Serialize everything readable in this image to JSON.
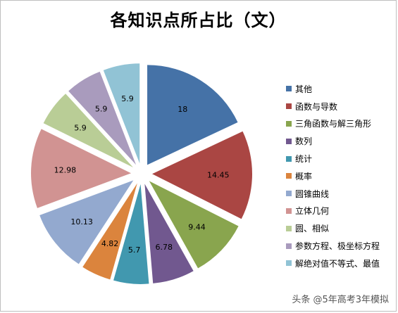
{
  "chart_data": {
    "type": "pie",
    "title": "各知识点所占比（文）",
    "categories": [
      "其他",
      "函数与导数",
      "三角函数与解三角形",
      "数列",
      "统计",
      "概率",
      "圆锥曲线",
      "立体几何",
      "圆、相似",
      "参数方程、极坐标方程",
      "解绝对值不等式、最值"
    ],
    "values": [
      18,
      14.45,
      9.44,
      6.78,
      5.7,
      4.82,
      10.13,
      12.98,
      5.9,
      5.9,
      5.9
    ],
    "value_labels": [
      "18",
      "14.45",
      "9.44",
      "6.78",
      "5.7",
      "4.82",
      "10.13",
      "12.98",
      "5.9",
      "5.9",
      "5.9"
    ],
    "colors": [
      "#4572A7",
      "#AA4643",
      "#89A54E",
      "#71588F",
      "#4198AF",
      "#DB843D",
      "#93A9CF",
      "#D19392",
      "#B9CD96",
      "#A99BBD",
      "#91C3D5"
    ],
    "legend_position": "right",
    "exploded": true
  },
  "watermark": "头条 @5年高考3年模拟"
}
